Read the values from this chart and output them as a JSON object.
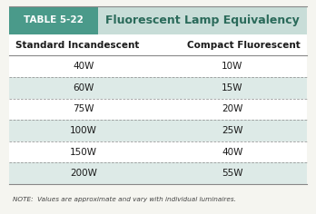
{
  "table_label": "TABLE 5-22",
  "table_title": "Fluorescent Lamp Equivalency",
  "col_headers": [
    "Standard Incandescent",
    "Compact Fluorescent"
  ],
  "rows": [
    [
      "40W",
      "10W"
    ],
    [
      "60W",
      "15W"
    ],
    [
      "75W",
      "20W"
    ],
    [
      "100W",
      "25W"
    ],
    [
      "150W",
      "40W"
    ],
    [
      "200W",
      "55W"
    ]
  ],
  "note": "NOTE:  Values are approximate and vary with individual luminaires.",
  "header_bg_left": "#4a9a8a",
  "header_bg_right": "#c8ddd8",
  "header_label_color": "#ffffff",
  "header_title_color": "#2a6a5a",
  "col_header_color": "#1a1a1a",
  "row_alt_colors": [
    "#ffffff",
    "#ddeae7"
  ],
  "row_text_color": "#1a1a1a",
  "note_color": "#444444",
  "border_color": "#888888",
  "fig_bg": "#f5f5f0"
}
